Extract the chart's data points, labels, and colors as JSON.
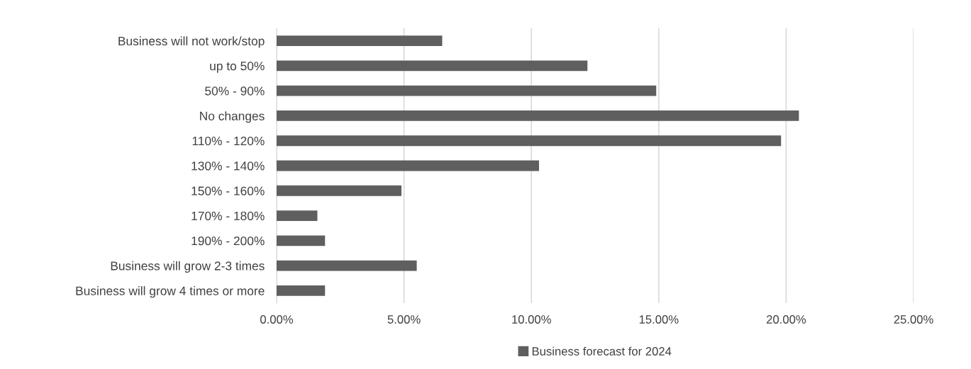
{
  "chart_data": {
    "type": "bar",
    "orientation": "horizontal",
    "categories": [
      "Business will not work/stop",
      "up to 50%",
      "50% - 90%",
      "No changes",
      "110% - 120%",
      "130% - 140%",
      "150% - 160%",
      "170% - 180%",
      "190% - 200%",
      "Business will grow 2-3 times",
      "Business will grow 4 times or more"
    ],
    "series": [
      {
        "name": "Business forecast for 2024",
        "color": "#5f5f5f",
        "values": [
          6.5,
          12.2,
          14.9,
          20.5,
          19.8,
          10.3,
          4.9,
          1.6,
          1.9,
          5.5,
          1.9
        ]
      }
    ],
    "xlim": [
      0,
      25
    ],
    "xticks": [
      {
        "value": 0,
        "label": "0.00%"
      },
      {
        "value": 5,
        "label": "5.00%"
      },
      {
        "value": 10,
        "label": "10.00%"
      },
      {
        "value": 15,
        "label": "15.00%"
      },
      {
        "value": 20,
        "label": "20.00%"
      },
      {
        "value": 25,
        "label": "25.00%"
      }
    ],
    "grid": "x",
    "legend": "bottom"
  }
}
